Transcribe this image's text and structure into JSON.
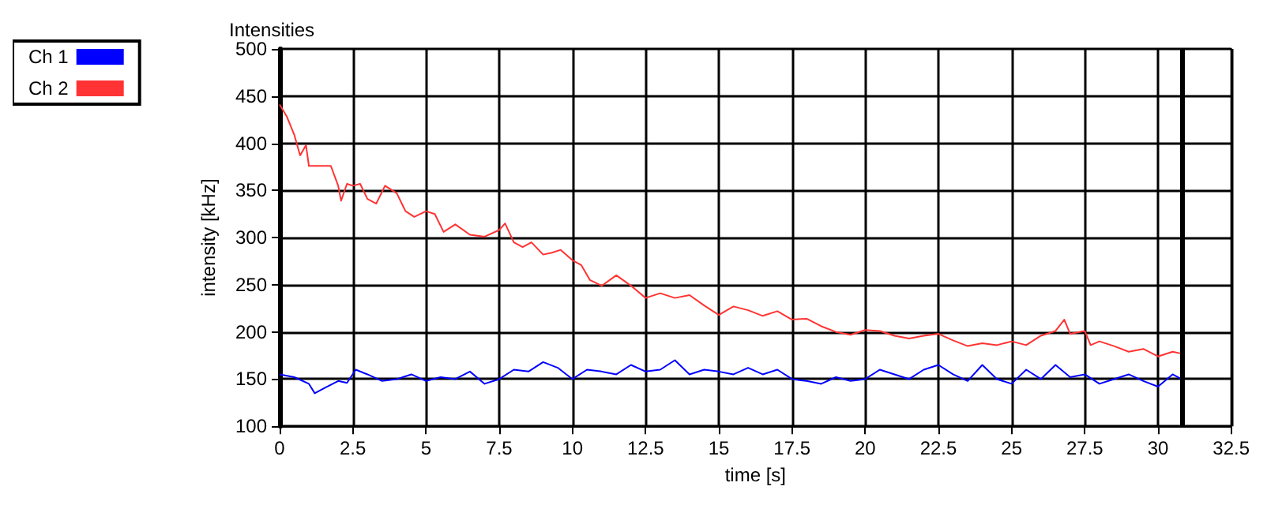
{
  "chart_data": {
    "type": "line",
    "title": "Intensities",
    "xlabel": "time [s]",
    "ylabel": "intensity [kHz]",
    "xlim": [
      0,
      32.5
    ],
    "xticks": [
      0,
      2.5,
      5,
      7.5,
      10,
      12.5,
      15,
      17.5,
      20,
      22.5,
      25,
      27.5,
      30,
      32.5
    ],
    "ylim": [
      100,
      500
    ],
    "yticks": [
      100,
      150,
      200,
      250,
      300,
      350,
      400,
      450,
      500
    ],
    "grid": true,
    "legend": "top left",
    "marker": "none",
    "line_style": "solid",
    "ref_lines": [
      {
        "axis": "x",
        "value": 30.8,
        "color": "#000000"
      }
    ],
    "series": [
      {
        "name": "Ch 1",
        "color": "#0000ff",
        "x": [
          0,
          0.5,
          1,
          1.2,
          1.5,
          2,
          2.3,
          2.6,
          3,
          3.5,
          4,
          4.5,
          5,
          5.5,
          6,
          6.5,
          7,
          7.5,
          8,
          8.5,
          9,
          9.5,
          10,
          10.5,
          11,
          11.5,
          12,
          12.5,
          13,
          13.5,
          14,
          14.5,
          15,
          15.5,
          16,
          16.5,
          17,
          17.5,
          18,
          18.5,
          19,
          19.5,
          20,
          20.5,
          21,
          21.5,
          22,
          22.5,
          23,
          23.5,
          24,
          24.5,
          25,
          25.5,
          26,
          26.5,
          27,
          27.5,
          28,
          28.5,
          29,
          29.5,
          30,
          30.5,
          30.8
        ],
        "values": [
          155,
          152,
          145,
          135,
          140,
          148,
          146,
          160,
          155,
          148,
          150,
          155,
          148,
          152,
          150,
          158,
          145,
          150,
          160,
          158,
          168,
          162,
          150,
          160,
          158,
          155,
          165,
          158,
          160,
          170,
          155,
          160,
          158,
          155,
          162,
          155,
          160,
          150,
          148,
          145,
          152,
          148,
          150,
          160,
          155,
          150,
          160,
          165,
          155,
          148,
          165,
          150,
          145,
          160,
          150,
          165,
          152,
          155,
          145,
          150,
          155,
          148,
          142,
          155,
          150
        ]
      },
      {
        "name": "Ch 2",
        "color": "#ff3333",
        "x": [
          0,
          0.25,
          0.5,
          0.7,
          0.9,
          1,
          1.5,
          1.75,
          2,
          2.1,
          2.3,
          2.5,
          2.75,
          3,
          3.3,
          3.6,
          4,
          4.3,
          4.6,
          5,
          5.3,
          5.6,
          6,
          6.5,
          7,
          7.5,
          7.7,
          8,
          8.3,
          8.6,
          9,
          9.3,
          9.6,
          10,
          10.3,
          10.6,
          11,
          11.5,
          12,
          12.5,
          13,
          13.5,
          14,
          14.5,
          15,
          15.5,
          16,
          16.5,
          17,
          17.5,
          18,
          18.5,
          19,
          19.5,
          20,
          20.5,
          21,
          21.5,
          22,
          22.5,
          23,
          23.5,
          24,
          24.5,
          25,
          25.5,
          26,
          26.5,
          26.8,
          27,
          27.5,
          27.7,
          28,
          28.5,
          29,
          29.5,
          30,
          30.5,
          30.8
        ],
        "values": [
          441,
          428,
          409,
          387,
          398,
          376,
          376,
          376,
          355,
          339,
          357,
          355,
          357,
          341,
          336,
          355,
          347,
          328,
          322,
          328,
          325,
          306,
          314,
          303,
          301,
          308,
          315,
          295,
          290,
          295,
          282,
          284,
          287,
          276,
          271,
          255,
          249,
          260,
          249,
          236,
          241,
          236,
          239,
          228,
          218,
          227,
          223,
          217,
          222,
          213,
          214,
          206,
          200,
          197,
          202,
          201,
          196,
          193,
          196,
          198,
          191,
          185,
          188,
          186,
          190,
          186,
          196,
          201,
          213,
          198,
          201,
          186,
          190,
          185,
          179,
          182,
          174,
          179,
          177
        ]
      }
    ]
  }
}
